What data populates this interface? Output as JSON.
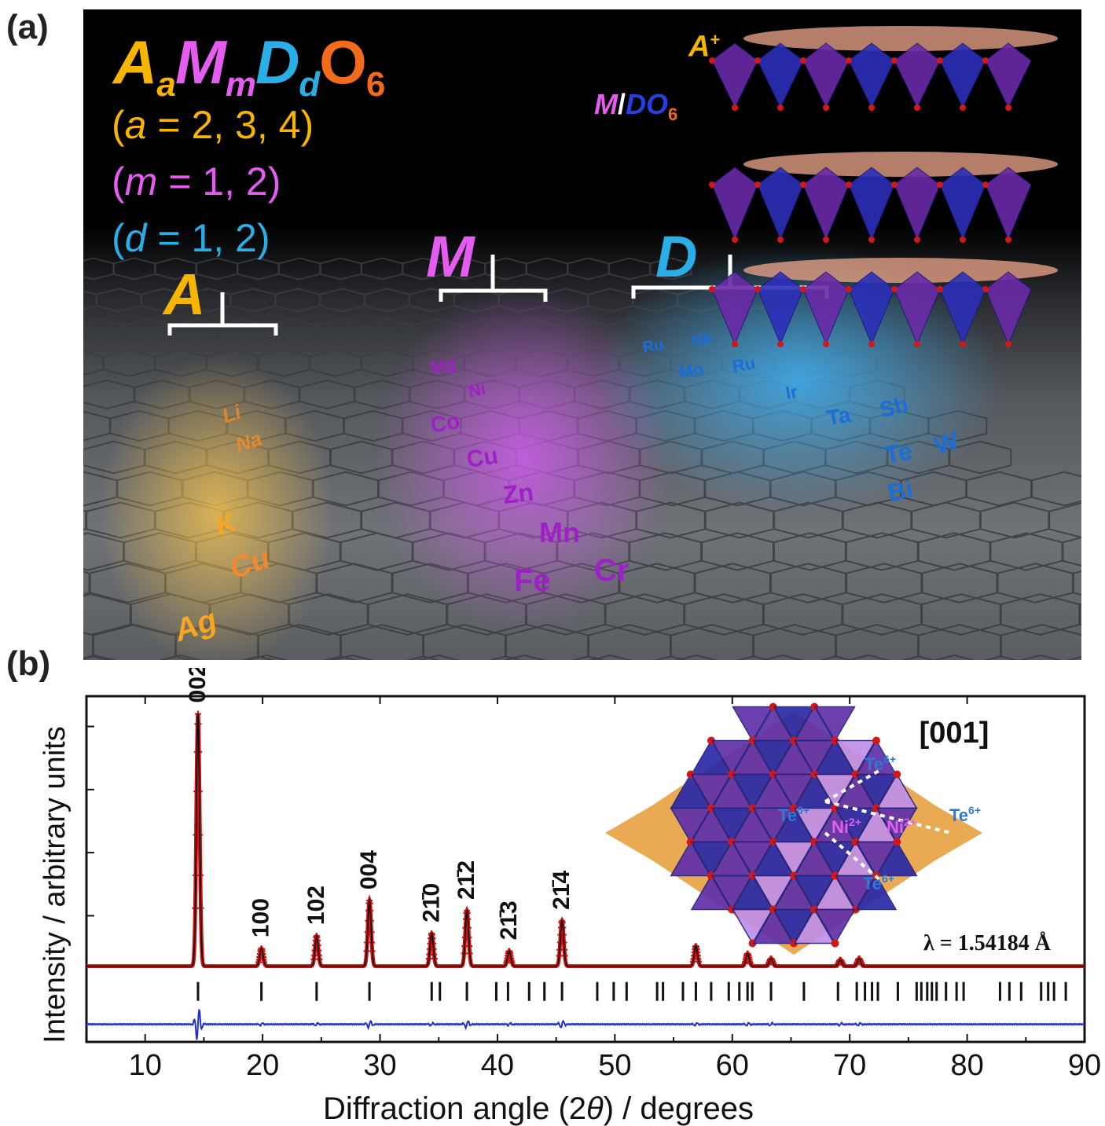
{
  "panel_a": {
    "label": "(a)",
    "formula": {
      "A": "A",
      "a": "a",
      "M": "M",
      "m": "m",
      "D": "D",
      "d": "d",
      "O": "O",
      "six": "6"
    },
    "conditions": {
      "a": {
        "var": "a",
        "text": " = 2, 3, 4)"
      },
      "m": {
        "var": "m",
        "text": " = 1, 2)"
      },
      "d": {
        "var": "d",
        "text": " = 1, 2)"
      }
    },
    "groups": {
      "A": "A",
      "M": "M",
      "D": "D"
    },
    "elements_A": [
      "Li",
      "Na",
      "K",
      "Cu",
      "Ag"
    ],
    "elements_M": [
      "Mg",
      "Ni",
      "Co",
      "Cu",
      "Zn",
      "Mn",
      "Fe",
      "Cr"
    ],
    "elements_D": [
      "Ru",
      "Nb",
      "Mo",
      "Ru",
      "Ir",
      "Ta",
      "Sb",
      "Te",
      "W",
      "Bi"
    ],
    "structure_labels": {
      "a_plus": "A",
      "plus": "+",
      "m": "M",
      "slash": "/",
      "d": "DO",
      "six": "6"
    },
    "colors": {
      "A": "#f7b500",
      "M": "#e45cf0",
      "D": "#29aee6",
      "O": "#f26b1d"
    }
  },
  "panel_b": {
    "label": "(b)",
    "inset": {
      "direction": "[001]",
      "te_label": "Te",
      "te_charge": "6+",
      "ni_label": "Ni",
      "ni_charge": "2+"
    },
    "wavelength": "λ = 1.54184 Å"
  },
  "chart_data": {
    "type": "line",
    "title": "",
    "xlabel_prefix": "Diffraction angle (2",
    "xlabel_theta": "θ",
    "xlabel_suffix": ") / degrees",
    "ylabel": "Intensity / arbitrary units",
    "xlim": [
      5,
      90
    ],
    "ylim": [
      -0.3,
      1.07
    ],
    "xticks": [
      10,
      20,
      30,
      40,
      50,
      60,
      70,
      80,
      90
    ],
    "y_ticks_unlabeled": [
      0.2,
      0.45,
      0.7,
      0.95
    ],
    "series": [
      {
        "name": "",
        "style": "observed (red crosses)",
        "color": "#d01010"
      },
      {
        "name": "",
        "style": "calculated (black line)",
        "color": "#000000"
      },
      {
        "name": "",
        "style": "difference (blue line)",
        "color": "#2030d0"
      }
    ],
    "peaks": [
      {
        "x": 14.5,
        "y": 1.0,
        "hkl": "002"
      },
      {
        "x": 19.9,
        "y": 0.07,
        "hkl": "100"
      },
      {
        "x": 24.6,
        "y": 0.12,
        "hkl": "102"
      },
      {
        "x": 29.1,
        "y": 0.26,
        "hkl": "004"
      },
      {
        "x": 34.4,
        "y": 0.13,
        "hkl": "21̄0"
      },
      {
        "x": 37.4,
        "y": 0.22,
        "hkl": "21̄2"
      },
      {
        "x": 41.0,
        "y": 0.06,
        "hkl": "21̄3"
      },
      {
        "x": 45.5,
        "y": 0.18,
        "hkl": "21̄4"
      },
      {
        "x": 56.9,
        "y": 0.08
      },
      {
        "x": 61.3,
        "y": 0.05
      },
      {
        "x": 63.3,
        "y": 0.03
      },
      {
        "x": 69.2,
        "y": 0.025
      },
      {
        "x": 70.8,
        "y": 0.03
      }
    ],
    "bragg_positions": [
      14.5,
      19.9,
      24.6,
      29.1,
      34.4,
      35.1,
      37.4,
      39.9,
      40.9,
      42.7,
      44.0,
      45.5,
      48.5,
      49.9,
      51.0,
      53.6,
      54.1,
      55.8,
      56.9,
      58.2,
      59.7,
      60.6,
      61.3,
      61.7,
      63.3,
      66.1,
      69.0,
      70.6,
      71.3,
      71.9,
      72.4,
      74.1,
      75.7,
      76.1,
      76.6,
      77.0,
      77.4,
      78.2,
      79.1,
      79.7,
      82.8,
      83.6,
      84.6,
      86.3,
      86.9,
      87.4,
      88.4
    ]
  }
}
